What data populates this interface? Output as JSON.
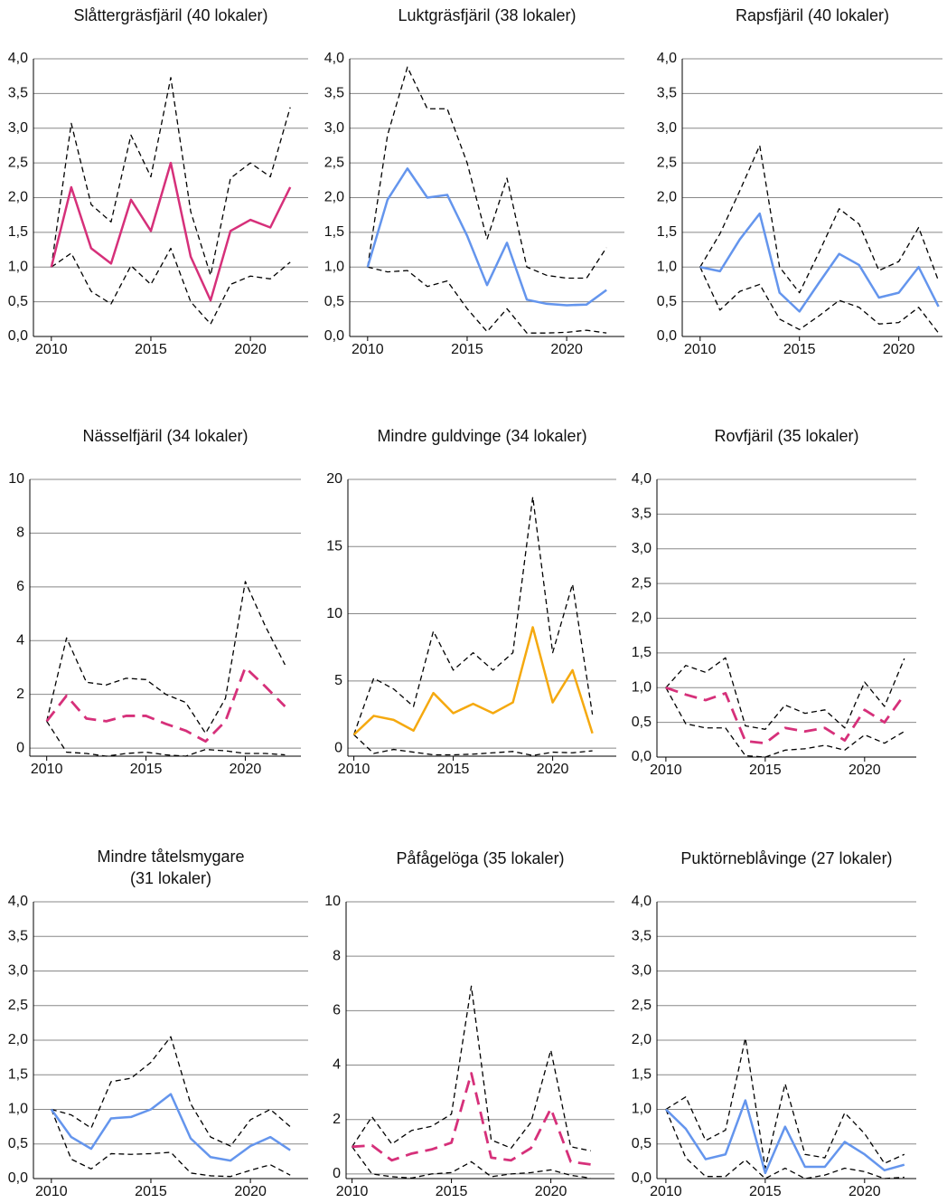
{
  "chart_data": [
    {
      "type": "line",
      "title": "Slåttergräsfjäril (40 lokaler)",
      "x": [
        2010,
        2011,
        2012,
        2013,
        2014,
        2015,
        2016,
        2017,
        2018,
        2019,
        2020,
        2021,
        2022
      ],
      "xlim": [
        2009.1,
        2022.9
      ],
      "xticks": [
        2010,
        2015,
        2020
      ],
      "ylim": [
        0,
        4
      ],
      "yticks": [
        {
          "value": 0,
          "label": "0,0"
        },
        {
          "value": 0.5,
          "label": "0,5"
        },
        {
          "value": 1,
          "label": "1,0"
        },
        {
          "value": 1.5,
          "label": "1,5"
        },
        {
          "value": 2,
          "label": "2,0"
        },
        {
          "value": 2.5,
          "label": "2,5"
        },
        {
          "value": 3,
          "label": "3,0"
        },
        {
          "value": 3.5,
          "label": "3,5"
        },
        {
          "value": 4,
          "label": "4,0"
        }
      ],
      "grid": true,
      "series": [
        {
          "color": "#d6307a",
          "line_style": "solid",
          "values": [
            1.0,
            2.15,
            1.27,
            1.05,
            1.97,
            1.52,
            2.5,
            1.15,
            0.52,
            1.52,
            1.68,
            1.57,
            2.15
          ]
        },
        {
          "color": "#000000",
          "line_style": "short-dash",
          "values": [
            1.0,
            3.07,
            1.9,
            1.65,
            2.9,
            2.3,
            3.73,
            1.8,
            0.88,
            2.28,
            2.5,
            2.3,
            3.3
          ]
        },
        {
          "color": "#000000",
          "line_style": "short-dash",
          "values": [
            1.0,
            1.2,
            0.65,
            0.47,
            1.02,
            0.75,
            1.27,
            0.5,
            0.18,
            0.75,
            0.87,
            0.83,
            1.07
          ]
        }
      ]
    },
    {
      "type": "line",
      "title": "Luktgräsfjäril (38 lokaler)",
      "x": [
        2010,
        2011,
        2012,
        2013,
        2014,
        2015,
        2016,
        2017,
        2018,
        2019,
        2020,
        2021,
        2022
      ],
      "xlim": [
        2009.1,
        2022.9
      ],
      "xticks": [
        2010,
        2015,
        2020
      ],
      "ylim": [
        0,
        4
      ],
      "yticks": [
        {
          "value": 0,
          "label": "0,0"
        },
        {
          "value": 0.5,
          "label": "0,5"
        },
        {
          "value": 1,
          "label": "1,0"
        },
        {
          "value": 1.5,
          "label": "1,5"
        },
        {
          "value": 2,
          "label": "2,0"
        },
        {
          "value": 2.5,
          "label": "2,5"
        },
        {
          "value": 3,
          "label": "3,0"
        },
        {
          "value": 3.5,
          "label": "3,5"
        },
        {
          "value": 4,
          "label": "4,0"
        }
      ],
      "grid": true,
      "series": [
        {
          "color": "#6495ed",
          "line_style": "solid",
          "values": [
            1.0,
            1.97,
            2.42,
            2.0,
            2.04,
            1.45,
            0.74,
            1.35,
            0.53,
            0.47,
            0.45,
            0.46,
            0.67
          ]
        },
        {
          "color": "#000000",
          "line_style": "short-dash",
          "values": [
            1.0,
            2.9,
            3.88,
            3.28,
            3.28,
            2.5,
            1.4,
            2.28,
            1.0,
            0.88,
            0.84,
            0.84,
            1.28
          ]
        },
        {
          "color": "#000000",
          "line_style": "short-dash",
          "values": [
            1.0,
            0.93,
            0.95,
            0.72,
            0.8,
            0.4,
            0.07,
            0.4,
            0.05,
            0.05,
            0.06,
            0.09,
            0.05
          ]
        }
      ]
    },
    {
      "type": "line",
      "title": "Rapsfjäril (40 lokaler)",
      "x": [
        2010,
        2011,
        2012,
        2013,
        2014,
        2015,
        2016,
        2017,
        2018,
        2019,
        2020,
        2021,
        2022
      ],
      "xlim": [
        2009.1,
        2022.2
      ],
      "xticks": [
        2010,
        2015,
        2020
      ],
      "ylim": [
        0,
        4
      ],
      "yticks": [
        {
          "value": 0,
          "label": "0,0"
        },
        {
          "value": 0.5,
          "label": "0,5"
        },
        {
          "value": 1,
          "label": "1,0"
        },
        {
          "value": 1.5,
          "label": "1,5"
        },
        {
          "value": 2,
          "label": "2,0"
        },
        {
          "value": 2.5,
          "label": "2,5"
        },
        {
          "value": 3,
          "label": "3,0"
        },
        {
          "value": 3.5,
          "label": "3,5"
        },
        {
          "value": 4,
          "label": "4,0"
        }
      ],
      "grid": true,
      "series": [
        {
          "color": "#6495ed",
          "line_style": "solid",
          "values": [
            1.0,
            0.94,
            1.4,
            1.77,
            0.63,
            0.36,
            0.78,
            1.19,
            1.03,
            0.56,
            0.63,
            1.0,
            0.43
          ]
        },
        {
          "color": "#000000",
          "line_style": "short-dash",
          "values": [
            1.0,
            1.48,
            2.1,
            2.75,
            1.0,
            0.63,
            1.22,
            1.84,
            1.62,
            0.95,
            1.08,
            1.57,
            0.8
          ]
        },
        {
          "color": "#000000",
          "line_style": "short-dash",
          "values": [
            1.0,
            0.38,
            0.65,
            0.75,
            0.25,
            0.1,
            0.3,
            0.52,
            0.42,
            0.18,
            0.2,
            0.42,
            0.05
          ]
        }
      ]
    },
    {
      "type": "line",
      "title": "Nässelfjäril (34 lokaler)",
      "x": [
        2010,
        2011,
        2012,
        2013,
        2014,
        2015,
        2016,
        2017,
        2018,
        2019,
        2020,
        2021,
        2022
      ],
      "xlim": [
        2009.15,
        2022.8
      ],
      "xticks": [
        2010,
        2015,
        2020
      ],
      "ylim": [
        -0.3,
        10
      ],
      "yticks": [
        0,
        2,
        4,
        6,
        8,
        10
      ],
      "grid": true,
      "series": [
        {
          "color": "#d6307a",
          "line_style": "long-dash",
          "values": [
            1.0,
            1.95,
            1.1,
            1.0,
            1.2,
            1.2,
            0.9,
            0.65,
            0.25,
            1.0,
            3.0,
            2.3,
            1.55
          ]
        },
        {
          "color": "#000000",
          "line_style": "short-dash",
          "values": [
            1.0,
            4.1,
            2.45,
            2.35,
            2.6,
            2.55,
            2.0,
            1.7,
            0.55,
            1.85,
            6.2,
            4.55,
            3.1
          ]
        },
        {
          "color": "#000000",
          "line_style": "short-dash",
          "values": [
            1.0,
            -0.15,
            -0.2,
            -0.3,
            -0.2,
            -0.15,
            -0.25,
            -0.3,
            -0.05,
            -0.1,
            -0.2,
            -0.2,
            -0.25
          ]
        }
      ]
    },
    {
      "type": "line",
      "title": "Mindre guldvinge (34 lokaler)",
      "x": [
        2010,
        2011,
        2012,
        2013,
        2014,
        2015,
        2016,
        2017,
        2018,
        2019,
        2020,
        2021,
        2022
      ],
      "xlim": [
        2009.7,
        2023.2
      ],
      "xticks": [
        2010,
        2015,
        2020
      ],
      "ylim": [
        -0.6,
        20
      ],
      "yticks": [
        0,
        5,
        10,
        15,
        20
      ],
      "grid": true,
      "series": [
        {
          "color": "#f5a90f",
          "line_style": "solid",
          "values": [
            1.0,
            2.4,
            2.1,
            1.3,
            4.1,
            2.6,
            3.3,
            2.6,
            3.4,
            9.0,
            3.4,
            5.8,
            1.1
          ]
        },
        {
          "color": "#000000",
          "line_style": "short-dash",
          "values": [
            1.0,
            5.2,
            4.4,
            3.1,
            8.7,
            5.8,
            7.1,
            5.8,
            7.1,
            18.7,
            7.1,
            12.2,
            2.5
          ]
        },
        {
          "color": "#000000",
          "line_style": "short-dash",
          "values": [
            1.0,
            -0.4,
            -0.1,
            -0.3,
            -0.5,
            -0.5,
            -0.45,
            -0.35,
            -0.25,
            -0.55,
            -0.3,
            -0.35,
            -0.2
          ]
        }
      ]
    },
    {
      "type": "line",
      "title": "Rovfjäril (35 lokaler)",
      "x": [
        2010,
        2011,
        2012,
        2013,
        2014,
        2015,
        2016,
        2017,
        2018,
        2019,
        2020,
        2021,
        2022
      ],
      "xlim": [
        2009.55,
        2022.6
      ],
      "xticks": [
        2010,
        2015,
        2020
      ],
      "ylim": [
        0,
        4
      ],
      "yticks": [
        {
          "value": 0,
          "label": "0,0"
        },
        {
          "value": 0.5,
          "label": "0,5"
        },
        {
          "value": 1,
          "label": "1,0"
        },
        {
          "value": 1.5,
          "label": "1,5"
        },
        {
          "value": 2,
          "label": "2,0"
        },
        {
          "value": 2.5,
          "label": "2,5"
        },
        {
          "value": 3,
          "label": "3,0"
        },
        {
          "value": 3.5,
          "label": "3,5"
        },
        {
          "value": 4,
          "label": "4,0"
        }
      ],
      "grid": true,
      "series": [
        {
          "color": "#d6307a",
          "line_style": "long-dash",
          "values": [
            1.0,
            0.9,
            0.82,
            0.92,
            0.23,
            0.2,
            0.42,
            0.37,
            0.42,
            0.24,
            0.68,
            0.5,
            0.9
          ]
        },
        {
          "color": "#000000",
          "line_style": "short-dash",
          "values": [
            1.0,
            1.32,
            1.22,
            1.43,
            0.45,
            0.4,
            0.75,
            0.63,
            0.68,
            0.42,
            1.08,
            0.73,
            1.42
          ]
        },
        {
          "color": "#000000",
          "line_style": "short-dash",
          "values": [
            1.0,
            0.48,
            0.42,
            0.42,
            0.02,
            0.0,
            0.1,
            0.12,
            0.17,
            0.1,
            0.32,
            0.2,
            0.37
          ]
        }
      ]
    },
    {
      "type": "line",
      "title": [
        "Mindre tåtelsmygare",
        "(31 lokaler)"
      ],
      "x": [
        2010,
        2011,
        2012,
        2013,
        2014,
        2015,
        2016,
        2017,
        2018,
        2019,
        2020,
        2021,
        2022
      ],
      "xlim": [
        2009.1,
        2022.9
      ],
      "xticks": [
        2010,
        2015,
        2020
      ],
      "ylim": [
        0,
        4
      ],
      "yticks": [
        {
          "value": 0,
          "label": "0,0"
        },
        {
          "value": 0.5,
          "label": "0,5"
        },
        {
          "value": 1,
          "label": "1,0"
        },
        {
          "value": 1.5,
          "label": "1,5"
        },
        {
          "value": 2,
          "label": "2,0"
        },
        {
          "value": 2.5,
          "label": "2,5"
        },
        {
          "value": 3,
          "label": "3,0"
        },
        {
          "value": 3.5,
          "label": "3,5"
        },
        {
          "value": 4,
          "label": "4,0"
        }
      ],
      "grid": true,
      "series": [
        {
          "color": "#6495ed",
          "line_style": "solid",
          "values": [
            1.0,
            0.6,
            0.43,
            0.87,
            0.89,
            1.0,
            1.22,
            0.58,
            0.31,
            0.26,
            0.47,
            0.6,
            0.41
          ]
        },
        {
          "color": "#000000",
          "line_style": "short-dash",
          "values": [
            1.0,
            0.92,
            0.73,
            1.4,
            1.45,
            1.68,
            2.05,
            1.08,
            0.6,
            0.47,
            0.85,
            1.0,
            0.75
          ]
        },
        {
          "color": "#000000",
          "line_style": "short-dash",
          "values": [
            1.0,
            0.28,
            0.14,
            0.36,
            0.35,
            0.36,
            0.38,
            0.08,
            0.04,
            0.03,
            0.12,
            0.2,
            0.05
          ]
        }
      ]
    },
    {
      "type": "line",
      "title": "Påfågelöga (35 lokaler)",
      "x": [
        2010,
        2011,
        2012,
        2013,
        2014,
        2015,
        2016,
        2017,
        2018,
        2019,
        2020,
        2021,
        2022
      ],
      "xlim": [
        2009.7,
        2023.2
      ],
      "xticks": [
        2010,
        2015,
        2020
      ],
      "ylim": [
        -0.17,
        10
      ],
      "yticks": [
        0,
        2,
        4,
        6,
        8,
        10
      ],
      "grid": true,
      "series": [
        {
          "color": "#d6307a",
          "line_style": "long-dash",
          "values": [
            1.0,
            1.05,
            0.5,
            0.75,
            0.9,
            1.15,
            3.7,
            0.6,
            0.5,
            0.95,
            2.4,
            0.45,
            0.35
          ]
        },
        {
          "color": "#000000",
          "line_style": "short-dash",
          "values": [
            1.0,
            2.1,
            1.1,
            1.6,
            1.75,
            2.2,
            6.9,
            1.25,
            0.95,
            1.9,
            4.55,
            1.0,
            0.85
          ]
        },
        {
          "color": "#000000",
          "line_style": "short-dash",
          "values": [
            1.0,
            0.0,
            -0.1,
            -0.15,
            0.0,
            0.05,
            0.45,
            -0.1,
            0.0,
            0.05,
            0.15,
            -0.05,
            -0.15
          ]
        }
      ]
    },
    {
      "type": "line",
      "title": "Puktörneblåvinge (27 lokaler)",
      "x": [
        2010,
        2011,
        2012,
        2013,
        2014,
        2015,
        2016,
        2017,
        2018,
        2019,
        2020,
        2021,
        2022
      ],
      "xlim": [
        2009.55,
        2022.6
      ],
      "xticks": [
        2010,
        2015,
        2020
      ],
      "ylim": [
        0,
        4
      ],
      "yticks": [
        {
          "value": 0,
          "label": "0,0"
        },
        {
          "value": 0.5,
          "label": "0,5"
        },
        {
          "value": 1,
          "label": "1,0"
        },
        {
          "value": 1.5,
          "label": "1,5"
        },
        {
          "value": 2,
          "label": "2,0"
        },
        {
          "value": 2.5,
          "label": "2,5"
        },
        {
          "value": 3,
          "label": "3,0"
        },
        {
          "value": 3.5,
          "label": "3,5"
        },
        {
          "value": 4,
          "label": "4,0"
        }
      ],
      "grid": true,
      "series": [
        {
          "color": "#6495ed",
          "line_style": "solid",
          "values": [
            1.0,
            0.72,
            0.28,
            0.35,
            1.13,
            0.08,
            0.75,
            0.17,
            0.17,
            0.53,
            0.35,
            0.12,
            0.2
          ]
        },
        {
          "color": "#000000",
          "line_style": "short-dash",
          "values": [
            1.0,
            1.18,
            0.55,
            0.7,
            2.03,
            0.15,
            1.37,
            0.35,
            0.3,
            0.95,
            0.65,
            0.22,
            0.35
          ]
        },
        {
          "color": "#000000",
          "line_style": "short-dash",
          "values": [
            1.0,
            0.3,
            0.03,
            0.03,
            0.27,
            0.0,
            0.15,
            0.0,
            0.05,
            0.15,
            0.1,
            0.0,
            0.02
          ]
        }
      ]
    }
  ]
}
